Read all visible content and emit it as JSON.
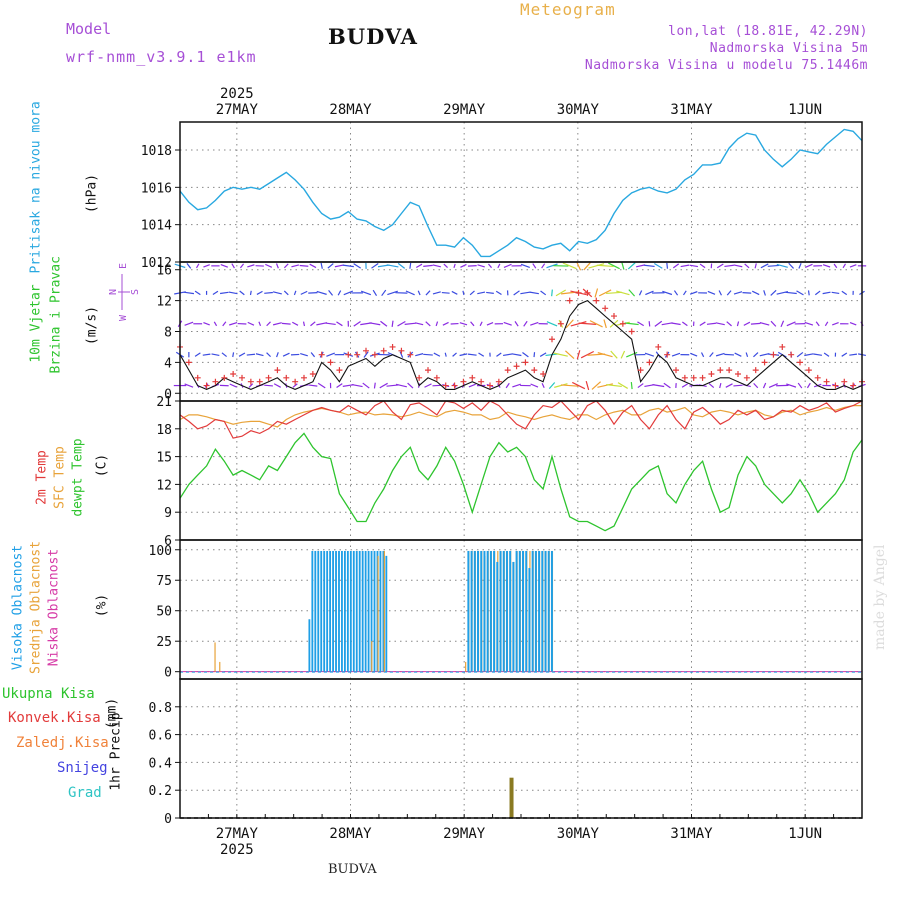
{
  "header": {
    "model_label": "Model",
    "model_version": "wrf-nmm_v3.9.1  e1km",
    "location": "BUDVA",
    "product": "Meteogram",
    "coords": "lon,lat (18.81E, 42.29N)",
    "elevation": "Nadmorska Visina 5m",
    "model_elevation": "Nadmorska Visina u modelu 75.1446m"
  },
  "footer": {
    "location": "BUDVA",
    "credit": "made by Angel"
  },
  "colors": {
    "pressure": "#29a8e0",
    "wind_speed": "#111111",
    "gust": "#e23b3b",
    "temp2m": "#e23b3b",
    "sfc_temp": "#e8a33a",
    "dewpoint": "#2ec42e",
    "high_cloud": "#1f9fe6",
    "mid_cloud": "#e8a33a",
    "low_cloud": "#d63aa6",
    "precip_bar": "#8a7a22"
  },
  "axis": {
    "year": "2025",
    "days": [
      "27MAY",
      "28MAY",
      "29MAY",
      "30MAY",
      "31MAY",
      "1JUN"
    ],
    "x_range_hours": [
      0,
      144
    ],
    "day_tick_hours": [
      12,
      36,
      60,
      84,
      108,
      132
    ]
  },
  "chart_data": [
    {
      "type": "line",
      "panel": "pressure",
      "ylabel_title": "Pritisak na nivou mora",
      "ylabel_unit": "(hPa)",
      "ylim": [
        1012,
        1019.5
      ],
      "yticks": [
        1012,
        1014,
        1016,
        1018
      ],
      "series": [
        {
          "values": [
            1015.8,
            1015.2,
            1014.8,
            1014.9,
            1015.3,
            1015.8,
            1016.0,
            1015.9,
            1016.0,
            1015.9,
            1016.2,
            1016.5,
            1016.8,
            1016.4,
            1015.9,
            1015.2,
            1014.6,
            1014.3,
            1014.4,
            1014.7,
            1014.3,
            1014.2,
            1013.9,
            1013.7,
            1014.0,
            1014.6,
            1015.2,
            1015.0,
            1013.9,
            1012.9,
            1012.9,
            1012.8,
            1013.3,
            1012.9,
            1012.3,
            1012.3,
            1012.6,
            1012.9,
            1013.3,
            1013.1,
            1012.8,
            1012.7,
            1012.9,
            1013.0,
            1012.6,
            1013.1,
            1013.0,
            1013.2,
            1013.7,
            1014.6,
            1015.3,
            1015.7,
            1015.9,
            1016.0,
            1015.8,
            1015.7,
            1015.9,
            1016.4,
            1016.7,
            1017.2,
            1017.2,
            1017.3,
            1018.1,
            1018.6,
            1018.9,
            1018.8,
            1018.0,
            1017.5,
            1017.1,
            1017.5,
            1018.0,
            1017.9,
            1017.8,
            1018.3,
            1018.7,
            1019.1,
            1019.0,
            1018.5
          ],
          "dt_hours": 1.87
        }
      ]
    },
    {
      "type": "line",
      "panel": "wind",
      "ylabel_title": "10m Vjetar",
      "ylabel_sub": "Brzina i Pravac",
      "ylabel_unit": "(m/s)",
      "compass": {
        "n": "N",
        "w": "W",
        "e": "E",
        "s": "S"
      },
      "ylim": [
        -1,
        17
      ],
      "yticks": [
        0,
        4,
        8,
        12,
        16
      ],
      "barb_levels": [
        1,
        5,
        9,
        13,
        16.5
      ],
      "series": [
        {
          "values": [
            5,
            3,
            1,
            0.5,
            1,
            2,
            1.5,
            1,
            0.5,
            1,
            1.5,
            2,
            1,
            0.5,
            1,
            1.5,
            4,
            3,
            1.5,
            3.5,
            4,
            4.5,
            3.5,
            4.5,
            5,
            4.5,
            4,
            1,
            2,
            1.5,
            0.5,
            0.5,
            1,
            1.5,
            1,
            0.5,
            1,
            2,
            2.5,
            3,
            2,
            1.5,
            5,
            7,
            10,
            11.5,
            12,
            11,
            10,
            9,
            8,
            7,
            1.5,
            3,
            5,
            4,
            2,
            1.5,
            1,
            1,
            1.5,
            2,
            2,
            1.5,
            1,
            2,
            3,
            4,
            5,
            4,
            3,
            2,
            1,
            0.5,
            0.5,
            1,
            0.5,
            1
          ]
        },
        {
          "values": [
            6,
            4,
            2,
            1,
            1.5,
            2,
            2.5,
            2,
            1.5,
            1.5,
            2,
            3,
            2,
            1.5,
            2,
            2.5,
            5,
            4,
            3,
            5,
            5,
            5.5,
            5,
            5.5,
            6,
            5.5,
            5,
            2,
            3,
            2,
            1,
            1,
            1.5,
            2,
            1.5,
            1,
            1.5,
            3,
            3.5,
            4,
            3,
            2.5,
            7,
            9,
            12,
            13,
            13,
            12,
            11,
            10,
            9,
            8,
            3,
            4,
            6,
            5,
            3,
            2,
            2,
            2,
            2.5,
            3,
            3,
            2.5,
            2,
            3,
            4,
            5,
            6,
            5,
            4,
            3,
            2,
            1.5,
            1,
            1.5,
            1,
            1.5
          ]
        }
      ]
    },
    {
      "type": "line",
      "panel": "temperature",
      "ylabel_lines": [
        "2m Temp",
        "SFC Temp",
        "dewpt Temp"
      ],
      "ylabel_unit": "(C)",
      "ylim": [
        6,
        21
      ],
      "yticks": [
        6,
        9,
        12,
        15,
        18,
        21
      ],
      "series": [
        {
          "name": "2m Temp",
          "values": [
            19.5,
            18.8,
            18.0,
            18.3,
            19.0,
            18.8,
            17.0,
            17.2,
            17.8,
            17.5,
            18.0,
            18.8,
            18.5,
            19.0,
            19.5,
            20.0,
            20.3,
            20.0,
            19.8,
            20.5,
            20.0,
            19.5,
            20.5,
            21.0,
            19.8,
            19.0,
            20.6,
            20.8,
            20.2,
            19.5,
            21.0,
            20.8,
            20.2,
            20.8,
            20.0,
            21.0,
            20.5,
            19.5,
            18.5,
            18.0,
            19.5,
            20.5,
            20.3,
            21.0,
            20.0,
            19.0,
            20.5,
            21.0,
            20.0,
            18.5,
            19.8,
            20.5,
            19.0,
            18.0,
            19.5,
            20.5,
            19.0,
            18.0,
            19.8,
            20.3,
            19.5,
            18.5,
            19.0,
            20.0,
            19.5,
            20.0,
            19.0,
            19.3,
            20.0,
            19.8,
            20.5,
            20.0,
            20.3,
            20.8,
            19.8,
            20.2,
            20.5,
            21.0
          ]
        },
        {
          "name": "SFC Temp",
          "values": [
            19.0,
            19.5,
            19.5,
            19.3,
            19.0,
            18.8,
            18.5,
            18.7,
            18.8,
            18.8,
            18.5,
            18.2,
            19.0,
            19.5,
            19.8,
            20.0,
            20.2,
            20.0,
            19.8,
            19.5,
            19.7,
            19.8,
            19.5,
            19.6,
            19.5,
            19.3,
            19.5,
            19.8,
            19.5,
            19.3,
            19.8,
            20.0,
            19.8,
            19.5,
            19.5,
            19.0,
            19.2,
            19.8,
            19.5,
            19.3,
            19.0,
            19.3,
            19.5,
            19.2,
            19.0,
            19.5,
            19.5,
            19.0,
            19.5,
            19.8,
            20.0,
            19.5,
            19.5,
            20.0,
            20.2,
            19.8,
            20.0,
            20.3,
            19.5,
            19.3,
            19.8,
            20.0,
            19.8,
            19.5,
            19.8,
            20.0,
            19.5,
            19.3,
            19.8,
            20.0,
            19.5,
            19.8,
            20.0,
            20.3,
            20.0,
            20.3,
            20.5,
            20.5
          ]
        },
        {
          "name": "dewpt Temp",
          "values": [
            10.5,
            12.0,
            13.0,
            14.0,
            15.8,
            14.5,
            13.0,
            13.5,
            13.0,
            12.5,
            14.0,
            13.5,
            15.0,
            16.5,
            17.5,
            16.0,
            15.0,
            14.8,
            11.0,
            9.5,
            8.0,
            8.0,
            10.0,
            11.5,
            13.5,
            15.0,
            16.0,
            13.5,
            12.5,
            14.0,
            16.0,
            14.5,
            12.0,
            9.0,
            12.0,
            15.0,
            16.5,
            15.5,
            16.0,
            15.0,
            12.5,
            11.5,
            15.0,
            11.5,
            8.5,
            8.0,
            8.0,
            7.5,
            7.0,
            7.5,
            9.5,
            11.5,
            12.5,
            13.5,
            14.0,
            11.0,
            10.0,
            12.0,
            13.5,
            14.5,
            11.5,
            9.0,
            9.5,
            13.0,
            15.0,
            14.0,
            12.0,
            11.0,
            10.0,
            11.0,
            12.5,
            11.0,
            9.0,
            10.0,
            11.0,
            12.5,
            15.5,
            16.8
          ]
        }
      ]
    },
    {
      "type": "bar",
      "panel": "clouds",
      "ylabel_lines": [
        "Visoka Oblacnost",
        "Srednja Oblacnost",
        "Niska Oblacnost"
      ],
      "ylabel_unit": "(%)",
      "ylim": [
        -6,
        108
      ],
      "yticks": [
        0,
        25,
        50,
        75,
        100
      ],
      "bars": [
        {
          "name": "Visoka Oblacnost",
          "hour_range": [
            26.5,
            44
          ],
          "values": [
            0,
            43,
            99,
            99,
            99,
            99,
            99,
            99,
            99,
            99,
            99,
            99,
            99,
            99,
            99,
            99,
            99,
            99,
            99,
            99,
            99,
            99,
            99,
            99,
            99,
            99,
            99,
            95
          ]
        },
        {
          "name": "Srednja Oblacnost",
          "hour_range": [
            7,
            9
          ],
          "values": [
            24,
            8
          ]
        },
        {
          "name": "Srednja Oblacnost",
          "hour_range": [
            40,
            44
          ],
          "values": [
            25,
            95,
            99
          ]
        },
        {
          "name": "Srednja Oblacnost",
          "hour_range": [
            60,
            79
          ],
          "values": [
            8,
            99,
            99,
            99,
            99,
            99,
            95,
            99,
            99,
            99,
            99,
            99,
            99,
            99,
            99,
            90,
            99,
            99,
            99,
            99,
            99,
            99,
            99,
            99,
            99,
            99,
            99,
            99
          ]
        },
        {
          "name": "Visoka Oblacnost",
          "hour_range": [
            60,
            79
          ],
          "values": [
            0,
            99,
            99,
            99,
            99,
            99,
            99,
            99,
            99,
            99,
            90,
            99,
            99,
            99,
            99,
            90,
            99,
            99,
            99,
            99,
            85,
            99,
            99,
            99,
            99,
            99,
            99,
            99
          ]
        }
      ]
    },
    {
      "type": "bar",
      "panel": "precipitation",
      "legend": [
        "Ukupna Kisa",
        "Konvek.Kisa",
        "Zaledj.Kisa",
        "Snijeg",
        "Grad"
      ],
      "legend_colors": [
        "#2ec42e",
        "#e23b3b",
        "#f0823a",
        "#4444e0",
        "#2ec4c4"
      ],
      "ylabel_title": "1hr Precip",
      "ylabel_unit": "(mm)",
      "ylim": [
        0,
        1.0
      ],
      "yticks": [
        0,
        0.2,
        0.4,
        0.6,
        0.8
      ],
      "values": [
        {
          "x_hour": 70,
          "value": 0.29
        }
      ]
    }
  ]
}
